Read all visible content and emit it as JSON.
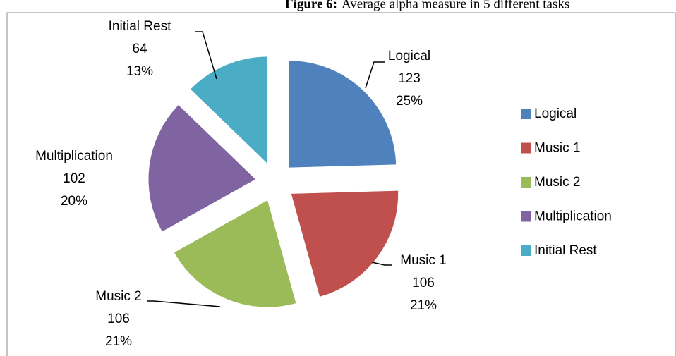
{
  "chart_data": {
    "type": "pie",
    "title_label": "Figure 6:",
    "title": "Average alpha measure in 5 different tasks",
    "categories": [
      "Logical",
      "Music 1",
      "Music 2",
      "Multiplication",
      "Initial Rest"
    ],
    "values": [
      123,
      106,
      106,
      102,
      64
    ],
    "percent_labels": [
      "25%",
      "21%",
      "21%",
      "20%",
      "13%"
    ],
    "colors": [
      "#4f81bd",
      "#c0504d",
      "#9bbb59",
      "#8064a2",
      "#4bacc6"
    ],
    "exploded": true,
    "legend": "right"
  }
}
